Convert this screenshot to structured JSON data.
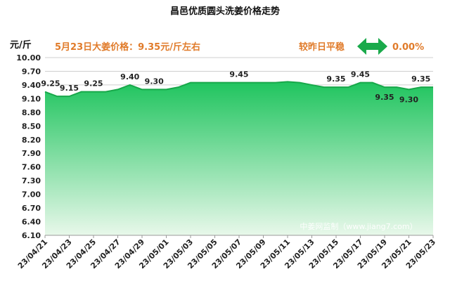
{
  "chart_data": {
    "type": "area",
    "title": "昌邑优质圆头洗姜价格走势",
    "ylabel": "元/斤",
    "info_text": "5月23日大姜价格：9.35元/斤左右",
    "compare_text": "较昨日平稳",
    "change_text": "0.00%",
    "watermark": "中姜网监制（www.jiang7.com）",
    "ylim": [
      6.1,
      10.0
    ],
    "yticks": [
      "10.00",
      "9.70",
      "9.40",
      "9.10",
      "8.80",
      "8.50",
      "8.20",
      "7.90",
      "7.60",
      "7.30",
      "7.00",
      "6.70",
      "6.40",
      "6.10"
    ],
    "x": [
      "23/04/21",
      "23/04/22",
      "23/04/23",
      "23/04/24",
      "23/04/25",
      "23/04/26",
      "23/04/27",
      "23/04/28",
      "23/04/29",
      "23/04/30",
      "23/05/01",
      "23/05/02",
      "23/05/03",
      "23/05/04",
      "23/05/05",
      "23/05/06",
      "23/05/07",
      "23/05/08",
      "23/05/09",
      "23/05/10",
      "23/05/11",
      "23/05/12",
      "23/05/13",
      "23/05/14",
      "23/05/15",
      "23/05/16",
      "23/05/17",
      "23/05/18",
      "23/05/19",
      "23/05/20",
      "23/05/21",
      "23/05/22",
      "23/05/23"
    ],
    "xticks": [
      "23/04/21",
      "23/04/23",
      "23/04/25",
      "23/04/27",
      "23/04/29",
      "23/05/01",
      "23/05/03",
      "23/05/05",
      "23/05/07",
      "23/05/09",
      "23/05/11",
      "23/05/13",
      "23/05/15",
      "23/05/17",
      "23/05/19",
      "23/05/21",
      "23/05/23"
    ],
    "values": [
      9.25,
      9.15,
      9.15,
      9.25,
      9.25,
      9.25,
      9.3,
      9.4,
      9.3,
      9.3,
      9.3,
      9.35,
      9.45,
      9.45,
      9.45,
      9.45,
      9.45,
      9.45,
      9.45,
      9.45,
      9.47,
      9.45,
      9.4,
      9.35,
      9.35,
      9.35,
      9.45,
      9.45,
      9.35,
      9.35,
      9.3,
      9.35,
      9.35
    ],
    "data_labels": [
      {
        "x": "23/04/21",
        "text": "9.25"
      },
      {
        "x": "23/04/23",
        "text": "9.15"
      },
      {
        "x": "23/04/25",
        "text": "9.25"
      },
      {
        "x": "23/04/28",
        "text": "9.40"
      },
      {
        "x": "23/04/30",
        "text": "9.30"
      },
      {
        "x": "23/05/07",
        "text": "9.45"
      },
      {
        "x": "23/05/15",
        "text": "9.35"
      },
      {
        "x": "23/05/17",
        "text": "9.45"
      },
      {
        "x": "23/05/19",
        "text": "9.35"
      },
      {
        "x": "23/05/21",
        "text": "9.30"
      },
      {
        "x": "23/05/22",
        "text": "9.35"
      }
    ],
    "colors": {
      "area_top": "#1fc45e",
      "area_bottom": "#e8f8ea",
      "line": "#18a84a",
      "arrow": "#1aaa4b",
      "info": "#e07b2a"
    },
    "grid": true
  }
}
